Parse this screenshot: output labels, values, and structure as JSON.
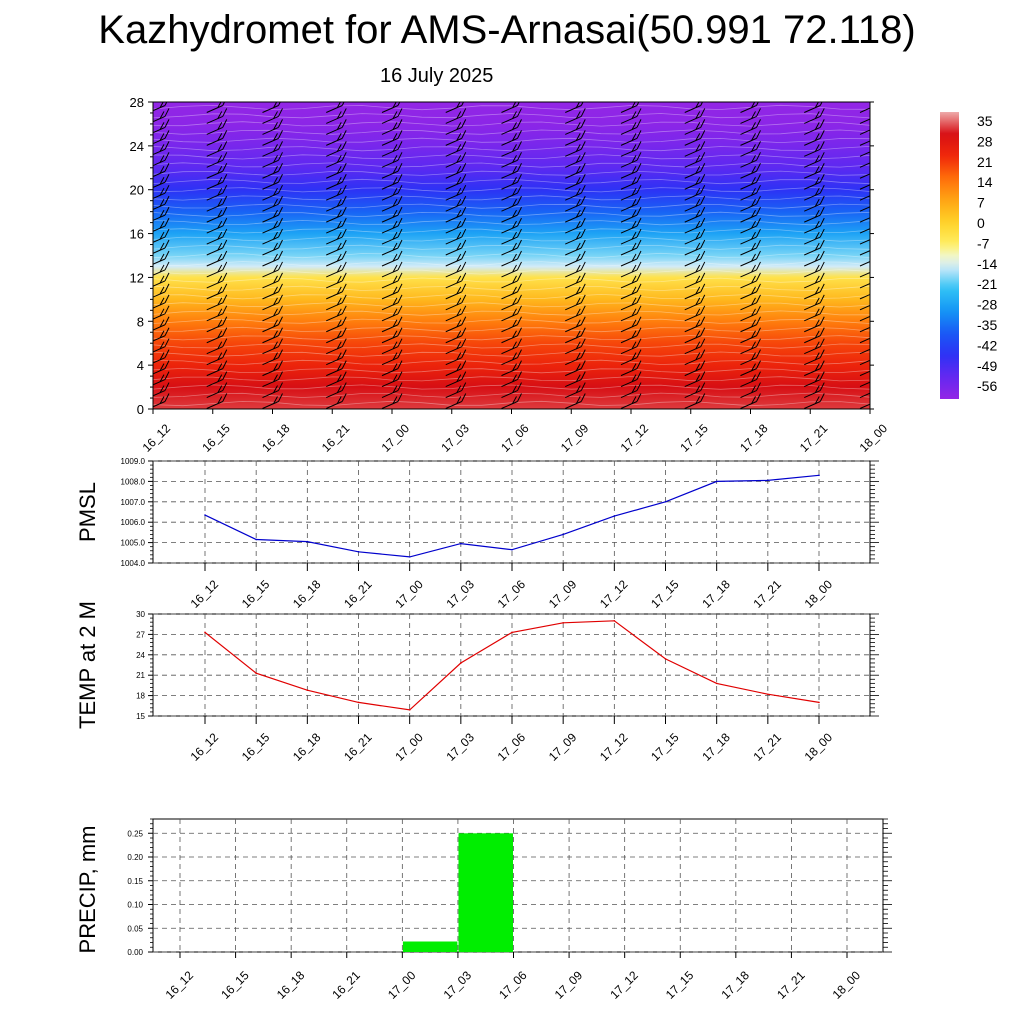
{
  "title": "Kazhydromet for AMS-Arnasai(50.991 72.118)",
  "subtitle": "16 July 2025",
  "colors": {
    "pmsl_line": "#0000cc",
    "temp_line": "#e00000",
    "precip_bar": "#00ee00",
    "frame": "#000000",
    "grid": "#555555"
  },
  "chart_data": [
    {
      "type": "heatmap",
      "title": "",
      "categories": [
        "16_12",
        "16_15",
        "16_18",
        "16_21",
        "17_00",
        "17_03",
        "17_06",
        "17_09",
        "17_12",
        "17_15",
        "17_18",
        "17_21",
        "18_00"
      ],
      "y_ticks": [
        0,
        4,
        8,
        12,
        16,
        20,
        24,
        28
      ],
      "ylim": [
        0,
        28
      ],
      "colorbar_labels": [
        "35",
        "28",
        "21",
        "14",
        "7",
        "0",
        "-7",
        "-14",
        "-21",
        "-28",
        "-35",
        "-42",
        "-49",
        "-56"
      ],
      "colorbar_range": [
        -56,
        35
      ],
      "value_profile_by_level": [
        {
          "y": 0,
          "value": 30
        },
        {
          "y": 2,
          "value": 28
        },
        {
          "y": 4,
          "value": 22
        },
        {
          "y": 6,
          "value": 18
        },
        {
          "y": 8,
          "value": 12
        },
        {
          "y": 10,
          "value": 4
        },
        {
          "y": 12,
          "value": -4
        },
        {
          "y": 13,
          "value": -14
        },
        {
          "y": 14,
          "value": -18
        },
        {
          "y": 16,
          "value": -26
        },
        {
          "y": 18,
          "value": -34
        },
        {
          "y": 20,
          "value": -42
        },
        {
          "y": 22,
          "value": -48
        },
        {
          "y": 24,
          "value": -52
        },
        {
          "y": 26,
          "value": -55
        },
        {
          "y": 28,
          "value": -56
        }
      ],
      "wind_barbs": "shown"
    },
    {
      "type": "line",
      "ylabel": "PMSL",
      "categories": [
        "16_12",
        "16_15",
        "16_18",
        "16_21",
        "17_00",
        "17_03",
        "17_06",
        "17_09",
        "17_12",
        "17_15",
        "17_18",
        "17_21",
        "18_00"
      ],
      "ytick_labels": [
        "1004.0",
        "1005.0",
        "1006.0",
        "1007.0",
        "1008.0",
        "1009.0"
      ],
      "ylim": [
        1004,
        1009
      ],
      "grid": true,
      "series": [
        {
          "values": [
            1006.35,
            1005.15,
            1005.05,
            1004.55,
            1004.3,
            1004.95,
            1004.65,
            1005.4,
            1006.3,
            1007.0,
            1008.0,
            1008.05,
            1008.3
          ]
        }
      ]
    },
    {
      "type": "line",
      "ylabel": "TEMP at 2 M",
      "categories": [
        "16_12",
        "16_15",
        "16_18",
        "16_21",
        "17_00",
        "17_03",
        "17_06",
        "17_09",
        "17_12",
        "17_15",
        "17_18",
        "17_21",
        "18_00"
      ],
      "ytick_labels": [
        "15",
        "18",
        "21",
        "24",
        "27",
        "30"
      ],
      "ylim": [
        15,
        30
      ],
      "grid": true,
      "series": [
        {
          "values": [
            27.3,
            21.3,
            18.8,
            17.0,
            15.9,
            22.8,
            27.3,
            28.7,
            29.0,
            23.4,
            19.8,
            18.2,
            17.0
          ]
        }
      ]
    },
    {
      "type": "bar",
      "ylabel": "PRECIP, mm",
      "categories": [
        "16_12",
        "16_15",
        "16_18",
        "16_21",
        "17_00",
        "17_03",
        "17_06",
        "17_09",
        "17_12",
        "17_15",
        "17_18",
        "17_21",
        "18_00"
      ],
      "ytick_labels": [
        "0.00",
        "0.05",
        "0.10",
        "0.15",
        "0.20",
        "0.25"
      ],
      "ylim": [
        0,
        0.28
      ],
      "grid": true,
      "values": [
        0,
        0,
        0,
        0,
        0,
        0.022,
        0.25,
        0,
        0,
        0,
        0,
        0,
        0
      ]
    }
  ]
}
